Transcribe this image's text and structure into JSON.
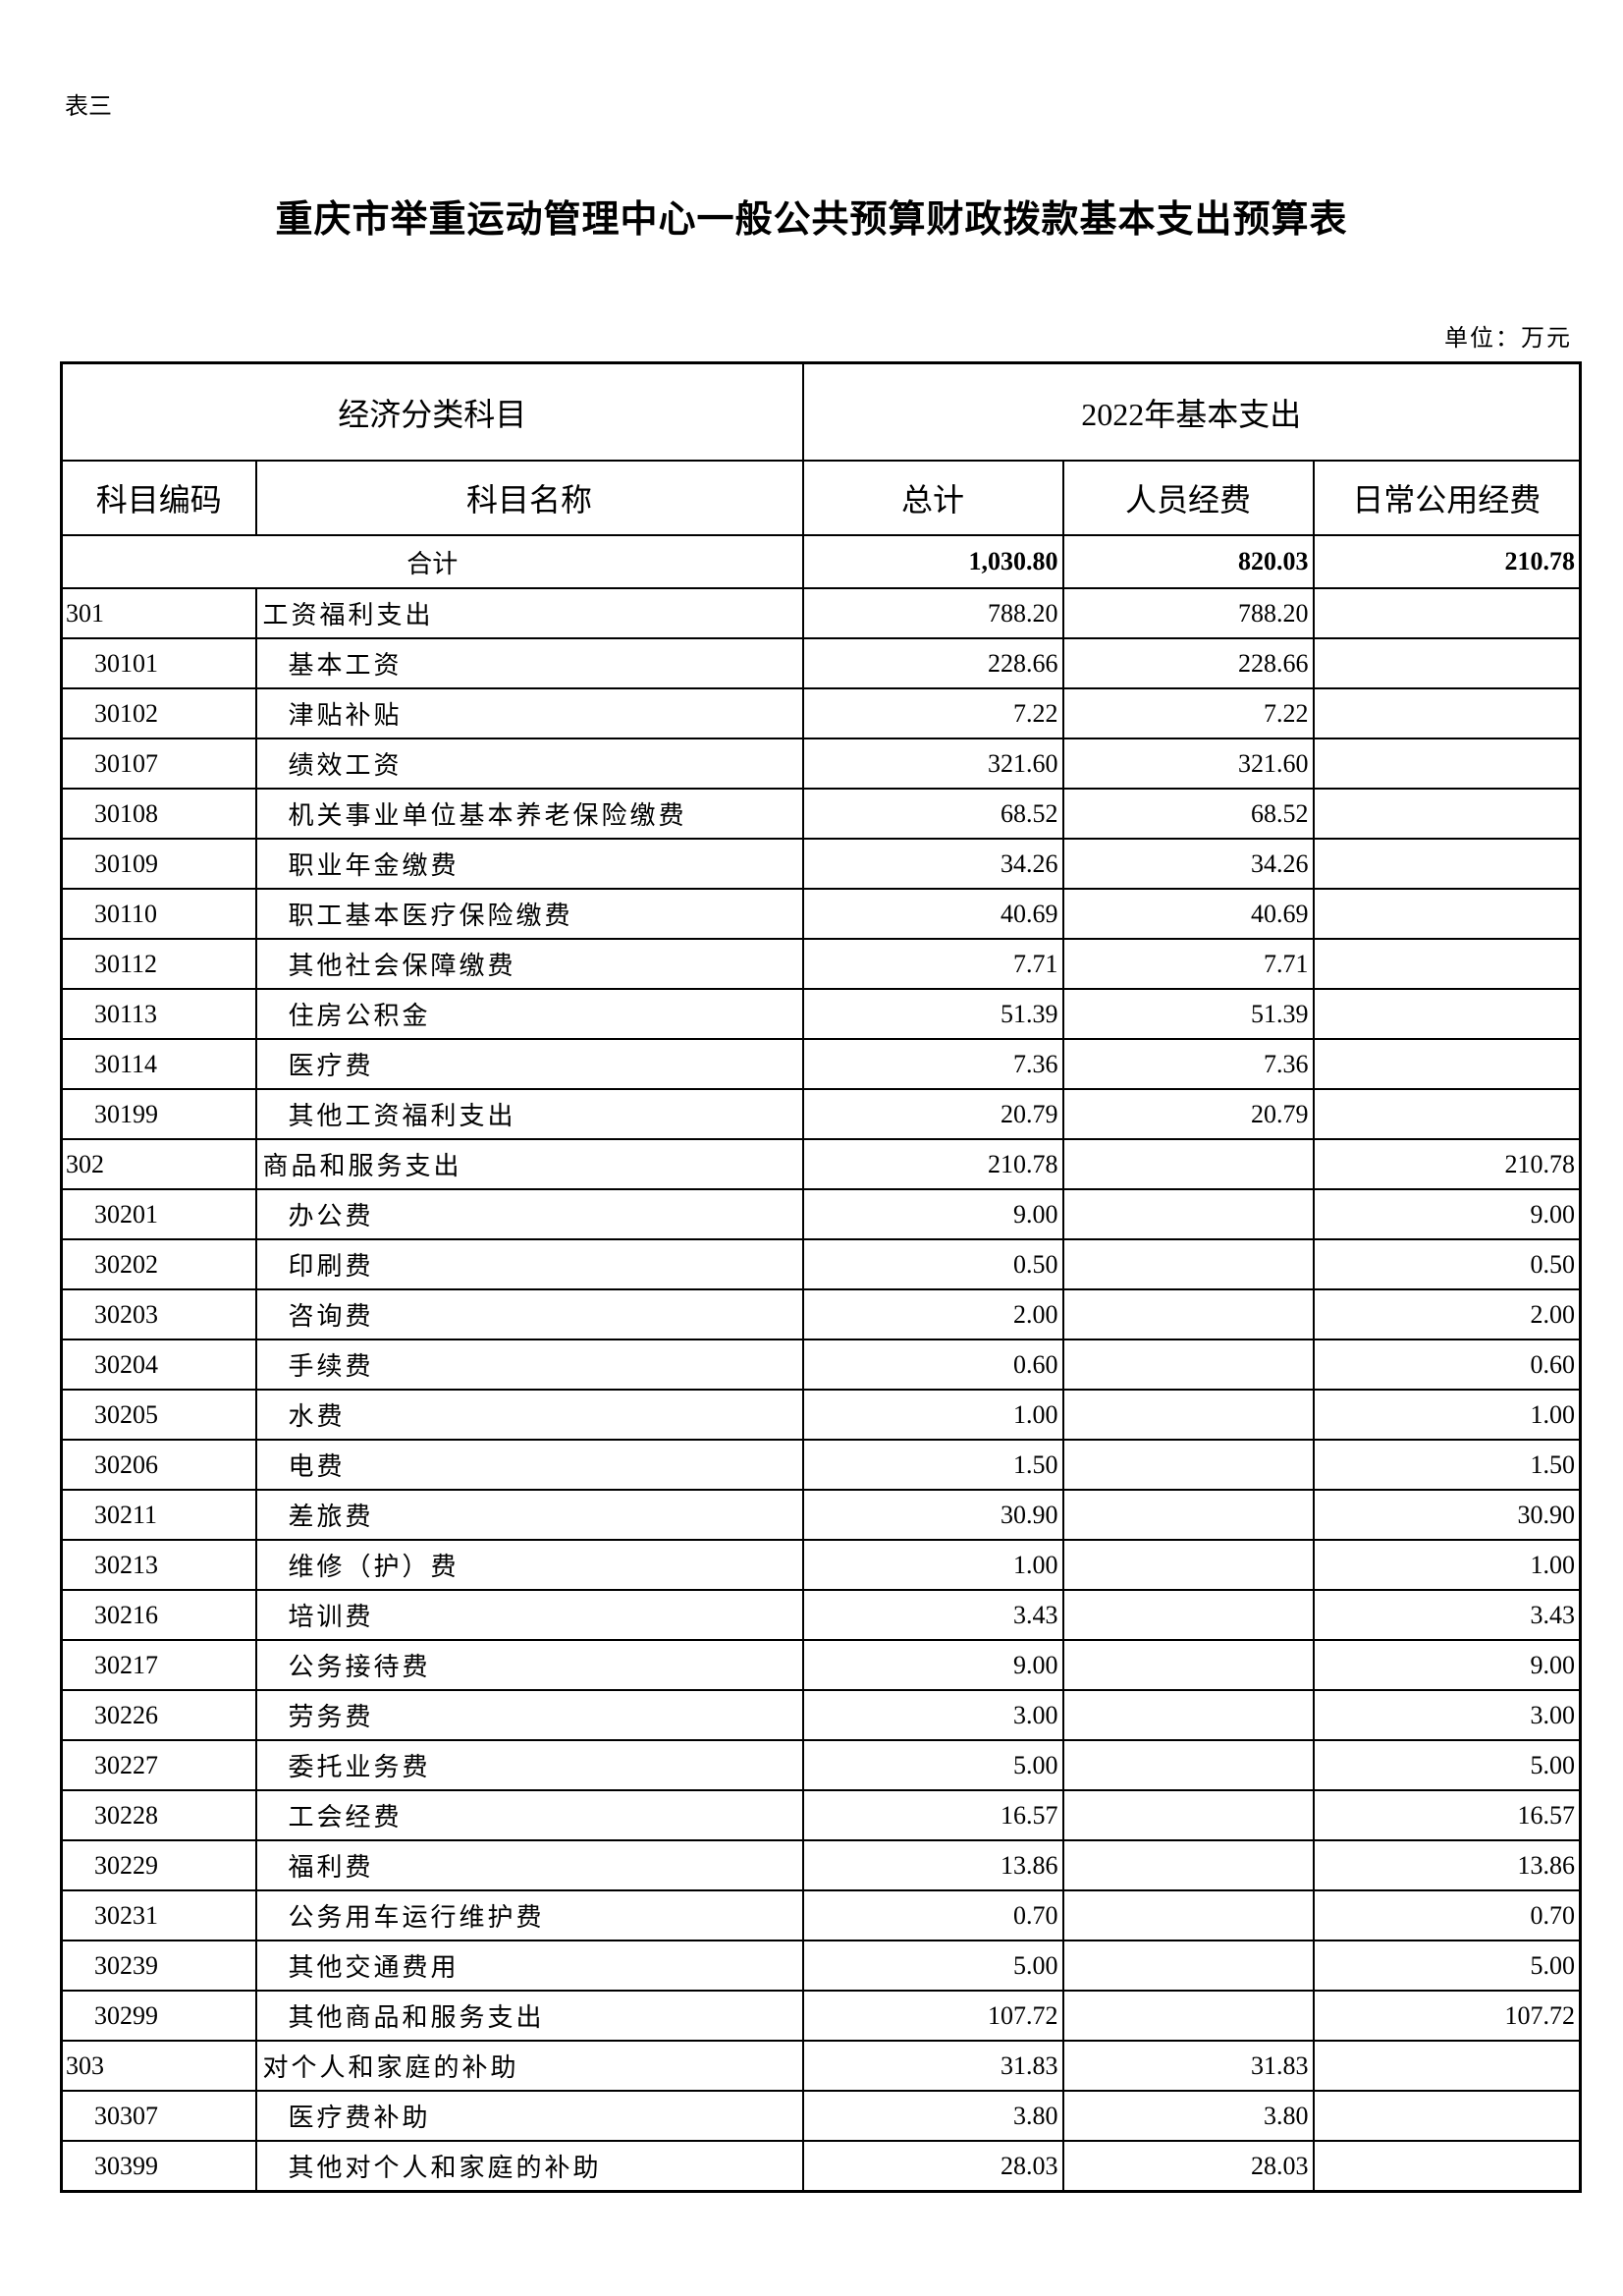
{
  "doc_label": "表三",
  "title": "重庆市举重运动管理中心一般公共预算财政拨款基本支出预算表",
  "unit": "单位：万元",
  "header": {
    "group_left": "经济分类科目",
    "group_right": "2022年基本支出",
    "col_code": "科目编码",
    "col_name": "科目名称",
    "col_total": "总计",
    "col_personnel": "人员经费",
    "col_public": "日常公用经费"
  },
  "total_row": {
    "label": "合计",
    "total": "1,030.80",
    "personnel": "820.03",
    "public": "210.78"
  },
  "rows": [
    {
      "level": 1,
      "code": "301",
      "name": "工资福利支出",
      "total": "788.20",
      "personnel": "788.20",
      "public": ""
    },
    {
      "level": 2,
      "code": "30101",
      "name": "基本工资",
      "total": "228.66",
      "personnel": "228.66",
      "public": ""
    },
    {
      "level": 2,
      "code": "30102",
      "name": "津贴补贴",
      "total": "7.22",
      "personnel": "7.22",
      "public": ""
    },
    {
      "level": 2,
      "code": "30107",
      "name": "绩效工资",
      "total": "321.60",
      "personnel": "321.60",
      "public": ""
    },
    {
      "level": 2,
      "code": "30108",
      "name": "机关事业单位基本养老保险缴费",
      "total": "68.52",
      "personnel": "68.52",
      "public": ""
    },
    {
      "level": 2,
      "code": "30109",
      "name": "职业年金缴费",
      "total": "34.26",
      "personnel": "34.26",
      "public": ""
    },
    {
      "level": 2,
      "code": "30110",
      "name": "职工基本医疗保险缴费",
      "total": "40.69",
      "personnel": "40.69",
      "public": ""
    },
    {
      "level": 2,
      "code": "30112",
      "name": "其他社会保障缴费",
      "total": "7.71",
      "personnel": "7.71",
      "public": ""
    },
    {
      "level": 2,
      "code": "30113",
      "name": "住房公积金",
      "total": "51.39",
      "personnel": "51.39",
      "public": ""
    },
    {
      "level": 2,
      "code": "30114",
      "name": "医疗费",
      "total": "7.36",
      "personnel": "7.36",
      "public": ""
    },
    {
      "level": 2,
      "code": "30199",
      "name": "其他工资福利支出",
      "total": "20.79",
      "personnel": "20.79",
      "public": ""
    },
    {
      "level": 1,
      "code": "302",
      "name": "商品和服务支出",
      "total": "210.78",
      "personnel": "",
      "public": "210.78"
    },
    {
      "level": 2,
      "code": "30201",
      "name": "办公费",
      "total": "9.00",
      "personnel": "",
      "public": "9.00"
    },
    {
      "level": 2,
      "code": "30202",
      "name": "印刷费",
      "total": "0.50",
      "personnel": "",
      "public": "0.50"
    },
    {
      "level": 2,
      "code": "30203",
      "name": "咨询费",
      "total": "2.00",
      "personnel": "",
      "public": "2.00"
    },
    {
      "level": 2,
      "code": "30204",
      "name": "手续费",
      "total": "0.60",
      "personnel": "",
      "public": "0.60"
    },
    {
      "level": 2,
      "code": "30205",
      "name": "水费",
      "total": "1.00",
      "personnel": "",
      "public": "1.00"
    },
    {
      "level": 2,
      "code": "30206",
      "name": "电费",
      "total": "1.50",
      "personnel": "",
      "public": "1.50"
    },
    {
      "level": 2,
      "code": "30211",
      "name": "差旅费",
      "total": "30.90",
      "personnel": "",
      "public": "30.90"
    },
    {
      "level": 2,
      "code": "30213",
      "name": "维修（护）费",
      "total": "1.00",
      "personnel": "",
      "public": "1.00"
    },
    {
      "level": 2,
      "code": "30216",
      "name": "培训费",
      "total": "3.43",
      "personnel": "",
      "public": "3.43"
    },
    {
      "level": 2,
      "code": "30217",
      "name": "公务接待费",
      "total": "9.00",
      "personnel": "",
      "public": "9.00"
    },
    {
      "level": 2,
      "code": "30226",
      "name": "劳务费",
      "total": "3.00",
      "personnel": "",
      "public": "3.00"
    },
    {
      "level": 2,
      "code": "30227",
      "name": "委托业务费",
      "total": "5.00",
      "personnel": "",
      "public": "5.00"
    },
    {
      "level": 2,
      "code": "30228",
      "name": "工会经费",
      "total": "16.57",
      "personnel": "",
      "public": "16.57"
    },
    {
      "level": 2,
      "code": "30229",
      "name": "福利费",
      "total": "13.86",
      "personnel": "",
      "public": "13.86"
    },
    {
      "level": 2,
      "code": "30231",
      "name": "公务用车运行维护费",
      "total": "0.70",
      "personnel": "",
      "public": "0.70"
    },
    {
      "level": 2,
      "code": "30239",
      "name": "其他交通费用",
      "total": "5.00",
      "personnel": "",
      "public": "5.00"
    },
    {
      "level": 2,
      "code": "30299",
      "name": "其他商品和服务支出",
      "total": "107.72",
      "personnel": "",
      "public": "107.72"
    },
    {
      "level": 1,
      "code": "303",
      "name": "对个人和家庭的补助",
      "total": "31.83",
      "personnel": "31.83",
      "public": ""
    },
    {
      "level": 2,
      "code": "30307",
      "name": "医疗费补助",
      "total": "3.80",
      "personnel": "3.80",
      "public": ""
    },
    {
      "level": 2,
      "code": "30399",
      "name": "其他对个人和家庭的补助",
      "total": "28.03",
      "personnel": "28.03",
      "public": ""
    }
  ]
}
